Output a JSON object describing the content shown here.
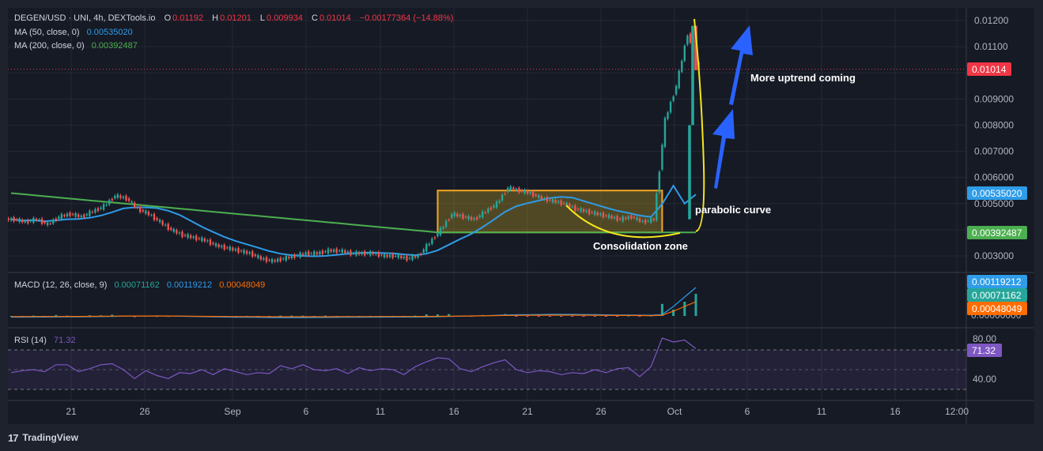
{
  "header": {
    "symbol": "DEGEN/USD · UNI, 4h, DEXTools.io",
    "o_label": "O",
    "o_value": "0.01192",
    "h_label": "H",
    "h_value": "0.01201",
    "l_label": "L",
    "l_value": "0.009934",
    "c_label": "C",
    "c_value": "0.01014",
    "change": "−0.00177364 (−14.88%)"
  },
  "ma50": {
    "label": "MA (50, close, 0)",
    "value": "0.00535020",
    "color": "#2e9ce8"
  },
  "ma200": {
    "label": "MA (200, close, 0)",
    "value": "0.00392487",
    "color": "#4caf50"
  },
  "macd": {
    "label": "MACD (12, 26, close, 9)",
    "hist": "0.00071162",
    "macd": "0.00119212",
    "signal": "0.00048049",
    "zero": "0.00000000"
  },
  "rsi": {
    "label": "RSI (14)",
    "value": "71.32",
    "level_high": "80.00",
    "level_low": "40.00",
    "color": "#7e57c2"
  },
  "price_badge": "0.01014",
  "annotations": {
    "uptrend": "More uptrend coming",
    "parabolic": "parabolic curve",
    "consolidation": "Consolidation zone"
  },
  "footer": {
    "logo": "17",
    "brand": "TradingView"
  },
  "chart_data": {
    "type": "candlestick",
    "title": "DEGEN/USD · UNI, 4h, DEXTools.io",
    "price_axis_ticks": [
      "0.01200",
      "0.01100",
      "0.01000",
      "0.009000",
      "0.008000",
      "0.007000",
      "0.006000",
      "0.005000",
      "0.004000",
      "0.003000"
    ],
    "price_axis_range": [
      0.0027,
      0.0124
    ],
    "time_axis_ticks": [
      "21",
      "26",
      "Sep",
      "6",
      "11",
      "16",
      "21",
      "26",
      "Oct",
      "6",
      "11",
      "16",
      "12:00"
    ],
    "close_series_approx": [
      0.0044,
      0.0043,
      0.0044,
      0.0042,
      0.0045,
      0.0046,
      0.0045,
      0.0047,
      0.0049,
      0.0053,
      0.0052,
      0.0048,
      0.0046,
      0.0043,
      0.004,
      0.0038,
      0.0037,
      0.0036,
      0.0034,
      0.0033,
      0.0032,
      0.0031,
      0.0029,
      0.0028,
      0.0029,
      0.003,
      0.0031,
      0.0031,
      0.0032,
      0.0032,
      0.0031,
      0.0031,
      0.0031,
      0.003,
      0.003,
      0.0029,
      0.003,
      0.0035,
      0.004,
      0.0046,
      0.0045,
      0.0044,
      0.0047,
      0.005,
      0.0056,
      0.0055,
      0.0054,
      0.0052,
      0.0051,
      0.005,
      0.0048,
      0.0047,
      0.0046,
      0.0045,
      0.0044,
      0.0045,
      0.0043,
      0.0044,
      0.0082,
      0.0095,
      0.0115,
      0.0101
    ],
    "ma50_last": 0.0053502,
    "ma200_last": 0.00392487,
    "consolidation_zone": {
      "low": 0.0039,
      "high": 0.0055
    },
    "macd_last": {
      "macd": 0.00119212,
      "signal": 0.00048049,
      "histogram": 0.00071162
    },
    "rsi_last": 71.32,
    "rsi_levels": [
      70,
      50,
      30
    ]
  }
}
